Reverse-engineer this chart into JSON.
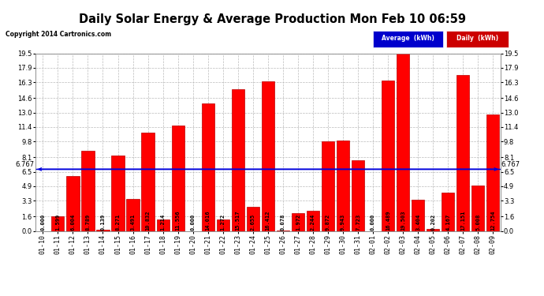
{
  "title": "Daily Solar Energy & Average Production Mon Feb 10 06:59",
  "copyright": "Copyright 2014 Cartronics.com",
  "categories": [
    "01-10",
    "01-11",
    "01-12",
    "01-13",
    "01-14",
    "01-15",
    "01-16",
    "01-17",
    "01-18",
    "01-19",
    "01-20",
    "01-21",
    "01-22",
    "01-23",
    "01-24",
    "01-25",
    "01-26",
    "01-27",
    "01-28",
    "01-29",
    "01-30",
    "01-31",
    "02-01",
    "02-02",
    "02-03",
    "02-04",
    "02-05",
    "02-06",
    "02-07",
    "02-08",
    "02-09"
  ],
  "values": [
    0.0,
    1.599,
    6.004,
    8.789,
    0.139,
    8.271,
    3.491,
    10.832,
    1.214,
    11.556,
    0.0,
    14.016,
    1.272,
    15.517,
    2.655,
    16.412,
    0.078,
    1.972,
    2.244,
    9.872,
    9.943,
    7.723,
    0.0,
    16.489,
    19.503,
    3.404,
    0.202,
    4.167,
    17.151,
    5.008,
    12.754
  ],
  "average": 6.767,
  "bar_color": "#ff0000",
  "bar_edge_color": "#bb0000",
  "average_line_color": "#0000dd",
  "bg_color": "#ffffff",
  "plot_bg_color": "#ffffff",
  "grid_color": "#bbbbbb",
  "title_color": "#000000",
  "yticks": [
    0.0,
    1.6,
    3.3,
    4.9,
    6.5,
    8.1,
    9.8,
    11.4,
    13.0,
    14.6,
    16.3,
    17.9,
    19.5
  ],
  "ylim": [
    0.0,
    19.5
  ],
  "legend_avg_label": "Average  (kWh)",
  "legend_daily_label": "Daily  (kWh)",
  "legend_avg_bg": "#0000cc",
  "legend_daily_bg": "#cc0000",
  "value_fontsize": 5.0,
  "tick_fontsize": 6.0,
  "title_fontsize": 10.5
}
